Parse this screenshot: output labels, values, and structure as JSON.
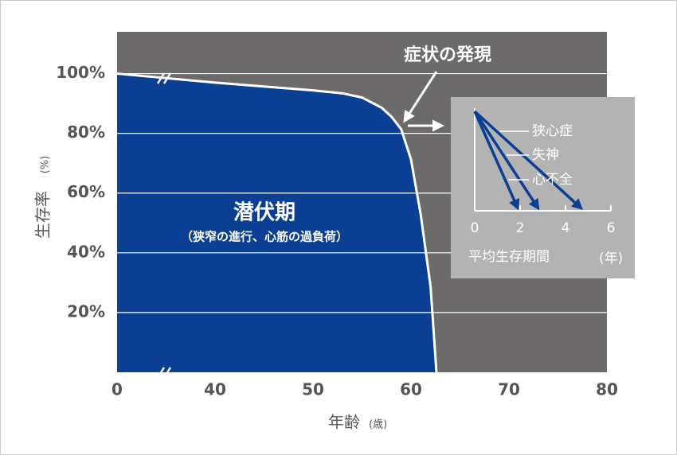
{
  "chart_data": [
    {
      "type": "area",
      "color": "#0b3f93",
      "line_color": "#ffffff",
      "grid": true,
      "y_label": "生存率",
      "y_unit": "(%)",
      "x_label": "年齢",
      "x_unit": "(歳)",
      "x": [
        0,
        40,
        50,
        53,
        55,
        57,
        58,
        59,
        60,
        61,
        62,
        62.6
      ],
      "values": [
        100,
        97,
        94.4,
        93.4,
        92,
        88.6,
        85.6,
        81.4,
        71.3,
        52.7,
        28.7,
        0
      ],
      "xlim": [
        0,
        80
      ],
      "xticks": [
        0,
        40,
        50,
        60,
        70,
        80
      ],
      "ylim": [
        0,
        114
      ],
      "yticks": [
        {
          "value": 20,
          "label": "20%"
        },
        {
          "value": 40,
          "label": "40%"
        },
        {
          "value": 60,
          "label": "60%"
        },
        {
          "value": 80,
          "label": "80%"
        },
        {
          "value": 100,
          "label": "100%"
        }
      ],
      "annotations": [
        "潜伏期",
        "（狭窄の進行、心筋の過負荷）",
        "症状の発現"
      ]
    },
    {
      "type": "arrow",
      "color": "#0b3f93",
      "categories": [
        "狭心症",
        "失神",
        "心不全"
      ],
      "values": [
        4.7,
        2.8,
        1.9
      ],
      "xlim": [
        0,
        6
      ],
      "xticks": [
        0,
        2,
        4,
        6
      ],
      "x_label": "平均生存期間",
      "x_unit": "(年)"
    }
  ]
}
